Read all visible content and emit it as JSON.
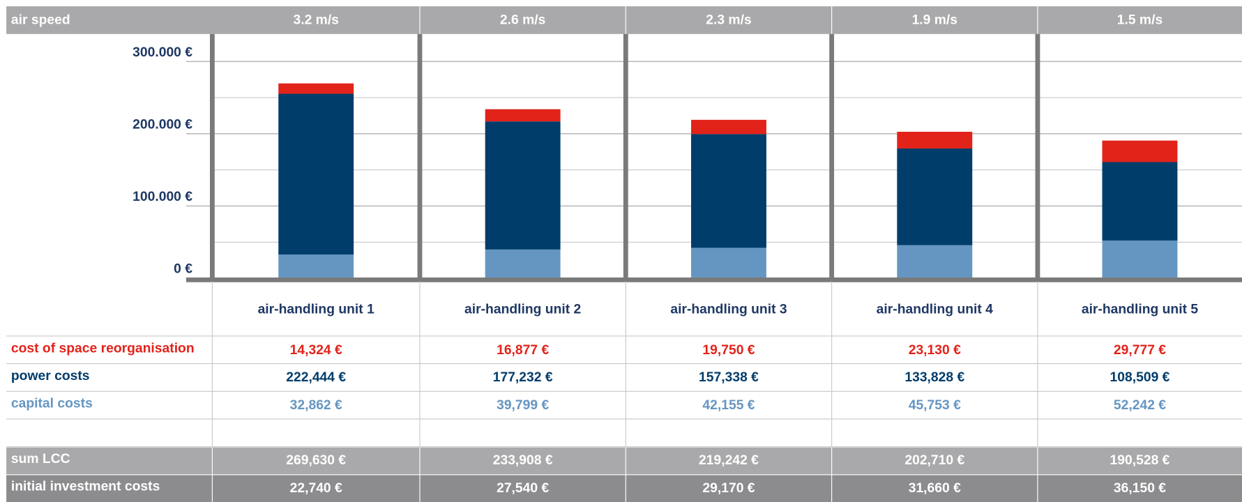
{
  "chart_data": {
    "type": "bar",
    "stacked": true,
    "air_speed": {
      "label": "air speed",
      "values": [
        "3.2 m/s",
        "2.6 m/s",
        "2.3 m/s",
        "1.9 m/s",
        "1.5 m/s"
      ]
    },
    "categories": [
      "air-handling unit 1",
      "air-handling unit 2",
      "air-handling unit 3",
      "air-handling unit 4",
      "air-handling unit 5"
    ],
    "series": [
      {
        "name": "capital costs",
        "color": "#6596c2",
        "values": [
          32862,
          39799,
          42155,
          45753,
          52242
        ],
        "value_labels": [
          "32,862 €",
          "39,799 €",
          "42,155 €",
          "45,753 €",
          "52,242 €"
        ]
      },
      {
        "name": "power costs",
        "color": "#003d6b",
        "values": [
          222444,
          177232,
          157338,
          133828,
          108509
        ],
        "value_labels": [
          "222,444 €",
          "177,232 €",
          "157,338 €",
          "133,828 €",
          "108,509 €"
        ]
      },
      {
        "name": "cost of space reorganisation",
        "color": "#e2231a",
        "values": [
          14324,
          16877,
          19750,
          23130,
          29777
        ],
        "value_labels": [
          "14,324 €",
          "16,877 €",
          "19,750 €",
          "23,130 €",
          "29,777 €"
        ]
      }
    ],
    "summary_rows": [
      {
        "label": "sum LCC",
        "cells": [
          "269,630 €",
          "233,908 €",
          "219,242 €",
          "202,710 €",
          "190,528 €"
        ]
      },
      {
        "label": "initial investment costs",
        "cells": [
          "22,740 €",
          "27,540 €",
          "29,170 €",
          "31,660 €",
          "36,150 €"
        ]
      }
    ],
    "ylim": [
      0,
      338000
    ],
    "yticks": [
      {
        "value": 0,
        "label": "0 €"
      },
      {
        "value": 100000,
        "label": "100.000 €"
      },
      {
        "value": 200000,
        "label": "200.000 €"
      },
      {
        "value": 300000,
        "label": "300.000 €"
      }
    ],
    "minor_yticks": [
      50000,
      150000,
      250000
    ],
    "grid": true
  }
}
